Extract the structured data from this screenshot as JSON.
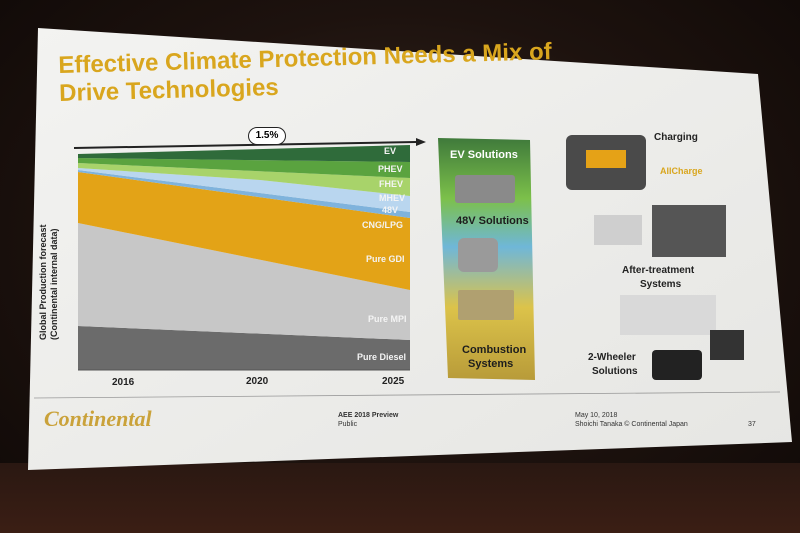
{
  "slide": {
    "title": "Effective Climate Protection Needs a Mix of Drive Technologies",
    "growth_label": "1.5%",
    "y_axis_label_line1": "Global Production forecast",
    "y_axis_label_line2": "(Continental internal data)",
    "series_labels": [
      "EV",
      "PHEV",
      "FHEV",
      "MHEV",
      "48V",
      "CNG/LPG",
      "Pure GDI",
      "Pure MPI",
      "Pure Diesel"
    ],
    "years": [
      "2016",
      "2020",
      "2025"
    ],
    "solutions": {
      "ev": "EV Solutions",
      "v48": "48V Solutions",
      "combustion_1": "Combustion",
      "combustion_2": "Systems"
    },
    "right": {
      "charging": "Charging",
      "allcharge": "AllCharge",
      "after_1": "After-treatment",
      "after_2": "Systems",
      "wheeler_1": "2-Wheeler",
      "wheeler_2": "Solutions"
    },
    "footer": {
      "logo": "Continental",
      "event": "AEE 2018 Preview",
      "class": "Public",
      "date": "May 10, 2018",
      "author": "Shoichi Tanaka © Continental Japan",
      "page": "37"
    }
  }
}
